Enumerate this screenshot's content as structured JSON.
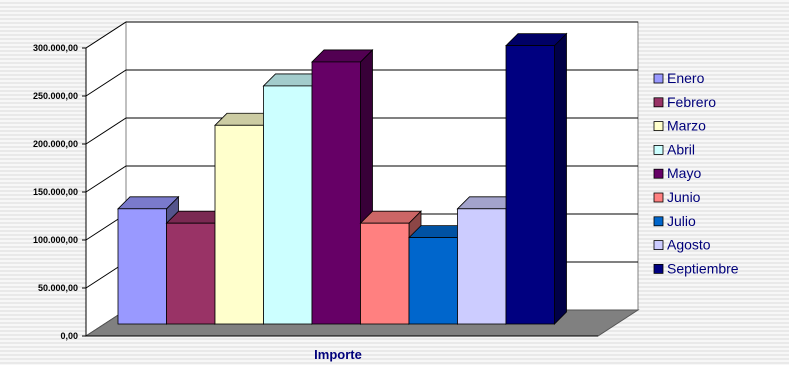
{
  "chart_data": {
    "type": "bar",
    "xlabel": "Importe",
    "ylabel": "",
    "ylim": [
      0,
      300000
    ],
    "y_ticks": [
      {
        "value": 0,
        "label": "0,00"
      },
      {
        "value": 50000,
        "label": "50.000,00"
      },
      {
        "value": 100000,
        "label": "100.000,00"
      },
      {
        "value": 150000,
        "label": "150.000,00"
      },
      {
        "value": 200000,
        "label": "200.000,00"
      },
      {
        "value": 250000,
        "label": "250.000,00"
      },
      {
        "value": 300000,
        "label": "300.000,00"
      }
    ],
    "grid": true,
    "legend_position": "right",
    "series": [
      {
        "name": "Enero",
        "value": 120000,
        "color": "#9999ff"
      },
      {
        "name": "Febrero",
        "value": 105000,
        "color": "#993366"
      },
      {
        "name": "Marzo",
        "value": 207000,
        "color": "#ffffcc"
      },
      {
        "name": "Abril",
        "value": 248000,
        "color": "#ccffff"
      },
      {
        "name": "Mayo",
        "value": 273000,
        "color": "#660066"
      },
      {
        "name": "Junio",
        "value": 105000,
        "color": "#ff8080"
      },
      {
        "name": "Julio",
        "value": 90000,
        "color": "#0066cc"
      },
      {
        "name": "Agosto",
        "value": 120000,
        "color": "#ccccff"
      },
      {
        "name": "Septiembre",
        "value": 290000,
        "color": "#000080"
      }
    ]
  }
}
